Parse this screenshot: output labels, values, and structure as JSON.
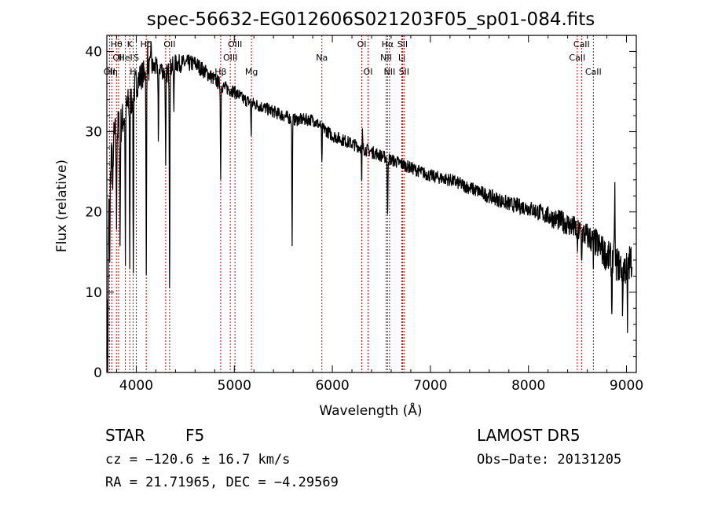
{
  "chart_data": {
    "type": "line",
    "title": "spec-56632-EG012606S021203F05_sp01-084.fits",
    "xlabel": "Wavelength (Å)",
    "ylabel": "Flux (relative)",
    "xlim": [
      3700,
      9100
    ],
    "ylim": [
      0,
      42
    ],
    "x_ticks": [
      4000,
      5000,
      6000,
      7000,
      8000,
      9000
    ],
    "y_ticks": [
      0,
      10,
      20,
      30,
      40
    ],
    "grid": false,
    "line_color": "#000000",
    "marker_color": "#cc0000",
    "continuum": {
      "x": [
        3700,
        3720,
        3750,
        3800,
        3850,
        3900,
        3950,
        4000,
        4050,
        4100,
        4150,
        4200,
        4250,
        4300,
        4350,
        4400,
        4500,
        4600,
        4700,
        4800,
        4900,
        5000,
        5100,
        5200,
        5300,
        5400,
        5500,
        5600,
        5700,
        5800,
        5900,
        6000,
        6100,
        6200,
        6300,
        6400,
        6500,
        6600,
        6700,
        6800,
        6900,
        7000,
        7200,
        7400,
        7600,
        7800,
        8000,
        8200,
        8400,
        8600,
        8700,
        8800,
        8900,
        9000,
        9050
      ],
      "y": [
        5,
        20,
        28,
        30,
        31,
        33,
        34,
        36,
        37,
        37.5,
        38,
        38,
        38,
        37,
        38,
        38.5,
        38.5,
        38.5,
        37.5,
        36.5,
        35.5,
        35,
        34,
        33.5,
        33,
        32.5,
        32,
        31.5,
        31.5,
        31.5,
        30.5,
        29.5,
        29,
        28.5,
        28,
        27.5,
        27,
        26.5,
        26,
        25.5,
        25,
        24.5,
        24,
        23,
        22,
        21,
        20.5,
        19.5,
        18.5,
        17,
        16,
        14.5,
        13.5,
        13,
        14
      ]
    },
    "absorption_features": [
      {
        "x": 3710,
        "depth": 15
      },
      {
        "x": 3730,
        "depth": 10
      },
      {
        "x": 3760,
        "depth": 8
      },
      {
        "x": 3798,
        "depth": 12
      },
      {
        "x": 3835,
        "depth": 15
      },
      {
        "x": 3889,
        "depth": 18
      },
      {
        "x": 3934,
        "depth": 20
      },
      {
        "x": 3970,
        "depth": 23
      },
      {
        "x": 4102,
        "depth": 26
      },
      {
        "x": 4226,
        "depth": 10
      },
      {
        "x": 4300,
        "depth": 12
      },
      {
        "x": 4340,
        "depth": 28
      },
      {
        "x": 4383,
        "depth": 6
      },
      {
        "x": 4861,
        "depth": 12
      },
      {
        "x": 5172,
        "depth": 4
      },
      {
        "x": 5590,
        "depth": 16
      },
      {
        "x": 5893,
        "depth": 5
      },
      {
        "x": 6300,
        "depth": 6
      },
      {
        "x": 6563,
        "depth": 8
      },
      {
        "x": 8498,
        "depth": 3
      },
      {
        "x": 8542,
        "depth": 4
      },
      {
        "x": 8662,
        "depth": 3
      },
      {
        "x": 8850,
        "depth": 7
      },
      {
        "x": 8960,
        "depth": 6
      },
      {
        "x": 9010,
        "depth": 8
      }
    ],
    "emission_features": [
      {
        "x": 6305,
        "height": 3
      },
      {
        "x": 8880,
        "height": 10
      },
      {
        "x": 4115,
        "height": 3
      },
      {
        "x": 4150,
        "height": 4
      }
    ],
    "noise_scale": [
      {
        "x": 3700,
        "amp": 3.0
      },
      {
        "x": 4200,
        "amp": 1.3
      },
      {
        "x": 5000,
        "amp": 0.8
      },
      {
        "x": 7000,
        "amp": 0.8
      },
      {
        "x": 8000,
        "amp": 1.0
      },
      {
        "x": 8500,
        "amp": 1.6
      },
      {
        "x": 9100,
        "amp": 2.5
      }
    ],
    "line_markers": [
      {
        "x": 3727,
        "label": "OII",
        "row": 2
      },
      {
        "x": 3750,
        "label": "Hη",
        "row": 2
      },
      {
        "x": 3798,
        "label": "Hθ",
        "row": 0
      },
      {
        "x": 3820,
        "label": "OII",
        "row": 1
      },
      {
        "x": 3889,
        "label": "HeI",
        "row": 1
      },
      {
        "x": 3934,
        "label": "K",
        "row": 0
      },
      {
        "x": 3968,
        "label": "H",
        "row": 2
      },
      {
        "x": 4000,
        "label": "S",
        "row": 1
      },
      {
        "x": 4102,
        "label": "Hδ",
        "row": 0
      },
      {
        "x": 4300,
        "label": "G",
        "row": 2
      },
      {
        "x": 4340,
        "label": "OII",
        "row": 0
      },
      {
        "x": 4861,
        "label": "Hβ",
        "row": 2
      },
      {
        "x": 4959,
        "label": "OIII",
        "row": 1
      },
      {
        "x": 5007,
        "label": "OIII",
        "row": 0
      },
      {
        "x": 5175,
        "label": "Mg",
        "row": 2
      },
      {
        "x": 5893,
        "label": "Na",
        "row": 1
      },
      {
        "x": 6300,
        "label": "OI",
        "row": 0
      },
      {
        "x": 6364,
        "label": "OI",
        "row": 2
      },
      {
        "x": 6548,
        "label": "NII",
        "row": 1
      },
      {
        "x": 6563,
        "label": "Hα",
        "row": 0
      },
      {
        "x": 6583,
        "label": "NII",
        "row": 2
      },
      {
        "x": 6708,
        "label": "Li",
        "row": 1
      },
      {
        "x": 6716,
        "label": "SII",
        "row": 0
      },
      {
        "x": 6731,
        "label": "SII",
        "row": 2
      },
      {
        "x": 8498,
        "label": "CaII",
        "row": 1
      },
      {
        "x": 8542,
        "label": "CaII",
        "row": 0
      },
      {
        "x": 8662,
        "label": "CaII",
        "row": 2
      }
    ]
  },
  "info": {
    "class_label": "STAR",
    "subclass": "F5",
    "survey": "LAMOST DR5",
    "cz": "cz = −120.6 ± 16.7 km/s",
    "obs_date": "Obs−Date: 20131205",
    "coords": "RA =  21.71965, DEC =  −4.29569"
  }
}
